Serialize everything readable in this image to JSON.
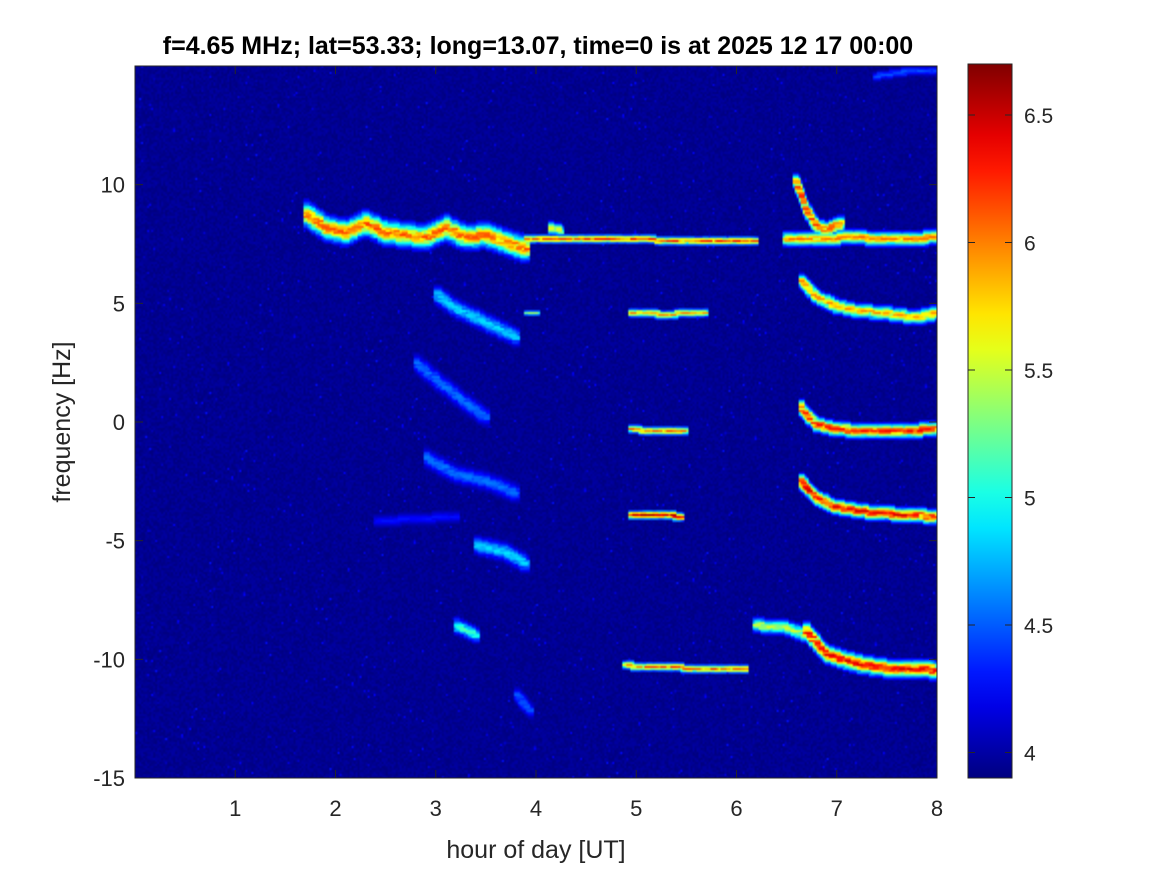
{
  "chart_data": {
    "type": "heatmap",
    "title": "f=4.65 MHz;  lat=53.33; long=13.07, time=0 is at 2025 12 17 00:00",
    "xlabel": "hour of day [UT]",
    "ylabel": "frequency [Hz]",
    "xlim": [
      0,
      8
    ],
    "ylim": [
      -15,
      15
    ],
    "x_ticks": [
      1,
      2,
      3,
      4,
      5,
      6,
      7,
      8
    ],
    "x_tick_labels": [
      "1",
      "2",
      "3",
      "4",
      "5",
      "6",
      "7",
      "8"
    ],
    "y_ticks": [
      -15,
      -10,
      -5,
      0,
      5,
      10
    ],
    "y_tick_labels": [
      "-15",
      "-10",
      "-5",
      "0",
      "5",
      "10"
    ],
    "colorbar": {
      "colormap": "jet",
      "clim": [
        3.9,
        6.7
      ],
      "ticks": [
        4,
        4.5,
        5,
        5.5,
        6,
        6.5
      ],
      "tick_labels": [
        "4",
        "4.5",
        "5",
        "5.5",
        "6",
        "6.5"
      ]
    },
    "background_level": 3.95,
    "features": [
      {
        "kind": "track",
        "points": [
          [
            1.7,
            8.8
          ],
          [
            1.9,
            8.2
          ],
          [
            2.1,
            8.0
          ],
          [
            2.3,
            8.4
          ],
          [
            2.5,
            8.0
          ],
          [
            2.7,
            7.9
          ],
          [
            2.9,
            7.8
          ],
          [
            3.1,
            8.2
          ],
          [
            3.3,
            7.8
          ],
          [
            3.5,
            7.9
          ],
          [
            3.7,
            7.6
          ],
          [
            3.9,
            7.3
          ]
        ],
        "level": 6.2,
        "width": 0.55
      },
      {
        "kind": "track",
        "points": [
          [
            3.9,
            7.7
          ],
          [
            5.0,
            7.7
          ],
          [
            6.0,
            7.65
          ],
          [
            6.2,
            7.65
          ]
        ],
        "level": 6.3,
        "width": 0.15
      },
      {
        "kind": "track",
        "points": [
          [
            6.5,
            7.7
          ],
          [
            7.2,
            7.8
          ],
          [
            7.6,
            7.7
          ],
          [
            8.0,
            7.8
          ]
        ],
        "level": 6.1,
        "width": 0.35
      },
      {
        "kind": "track",
        "points": [
          [
            6.6,
            10.2
          ],
          [
            6.7,
            9.0
          ],
          [
            6.8,
            8.3
          ],
          [
            6.9,
            8.1
          ],
          [
            7.05,
            8.4
          ]
        ],
        "level": 6.3,
        "width": 0.3
      },
      {
        "kind": "track",
        "points": [
          [
            4.15,
            8.2
          ],
          [
            4.25,
            8.1
          ]
        ],
        "level": 5.6,
        "width": 0.25
      },
      {
        "kind": "track",
        "points": [
          [
            3.0,
            5.4
          ],
          [
            3.2,
            4.8
          ],
          [
            3.4,
            4.4
          ],
          [
            3.6,
            4.0
          ],
          [
            3.8,
            3.6
          ]
        ],
        "level": 4.9,
        "width": 0.45
      },
      {
        "kind": "track",
        "points": [
          [
            4.95,
            4.6
          ],
          [
            5.3,
            4.55
          ],
          [
            5.7,
            4.6
          ]
        ],
        "level": 6.0,
        "width": 0.15
      },
      {
        "kind": "track",
        "points": [
          [
            3.9,
            4.6
          ],
          [
            4.0,
            4.6
          ]
        ],
        "level": 5.4,
        "width": 0.1
      },
      {
        "kind": "track",
        "points": [
          [
            6.65,
            6.0
          ],
          [
            6.8,
            5.3
          ],
          [
            7.0,
            4.9
          ],
          [
            7.2,
            4.7
          ],
          [
            7.5,
            4.6
          ],
          [
            7.8,
            4.4
          ],
          [
            8.0,
            4.6
          ]
        ],
        "level": 6.0,
        "width": 0.35
      },
      {
        "kind": "track",
        "points": [
          [
            2.8,
            2.5
          ],
          [
            3.0,
            1.8
          ],
          [
            3.3,
            0.8
          ],
          [
            3.5,
            0.2
          ]
        ],
        "level": 4.6,
        "width": 0.4
      },
      {
        "kind": "track",
        "points": [
          [
            4.95,
            -0.3
          ],
          [
            5.2,
            -0.4
          ],
          [
            5.5,
            -0.4
          ]
        ],
        "level": 6.2,
        "width": 0.15
      },
      {
        "kind": "track",
        "points": [
          [
            6.65,
            0.6
          ],
          [
            6.8,
            -0.1
          ],
          [
            7.0,
            -0.3
          ],
          [
            7.3,
            -0.4
          ],
          [
            7.6,
            -0.4
          ],
          [
            8.0,
            -0.3
          ]
        ],
        "level": 6.4,
        "width": 0.35
      },
      {
        "kind": "track",
        "points": [
          [
            2.9,
            -1.5
          ],
          [
            3.2,
            -2.2
          ],
          [
            3.5,
            -2.5
          ],
          [
            3.8,
            -3.0
          ]
        ],
        "level": 4.6,
        "width": 0.45
      },
      {
        "kind": "track",
        "points": [
          [
            4.95,
            -3.9
          ],
          [
            5.2,
            -3.9
          ],
          [
            5.45,
            -4.0
          ]
        ],
        "level": 6.6,
        "width": 0.15
      },
      {
        "kind": "track",
        "points": [
          [
            6.65,
            -2.5
          ],
          [
            6.8,
            -3.2
          ],
          [
            7.0,
            -3.6
          ],
          [
            7.3,
            -3.8
          ],
          [
            7.6,
            -3.9
          ],
          [
            8.0,
            -4.0
          ]
        ],
        "level": 6.5,
        "width": 0.35
      },
      {
        "kind": "track",
        "points": [
          [
            2.4,
            -4.2
          ],
          [
            2.8,
            -4.1
          ],
          [
            3.2,
            -4.0
          ]
        ],
        "level": 4.3,
        "width": 0.25
      },
      {
        "kind": "track",
        "points": [
          [
            3.4,
            -5.2
          ],
          [
            3.7,
            -5.5
          ],
          [
            3.9,
            -6.0
          ]
        ],
        "level": 4.9,
        "width": 0.4
      },
      {
        "kind": "track",
        "points": [
          [
            3.2,
            -8.6
          ],
          [
            3.4,
            -9.0
          ]
        ],
        "level": 5.2,
        "width": 0.35
      },
      {
        "kind": "track",
        "points": [
          [
            4.9,
            -10.3
          ],
          [
            5.5,
            -10.4
          ],
          [
            6.1,
            -10.4
          ]
        ],
        "level": 6.2,
        "width": 0.15
      },
      {
        "kind": "track",
        "points": [
          [
            6.2,
            -8.6
          ],
          [
            6.5,
            -8.7
          ],
          [
            6.7,
            -9.0
          ]
        ],
        "level": 5.6,
        "width": 0.3
      },
      {
        "kind": "track",
        "points": [
          [
            6.7,
            -8.8
          ],
          [
            6.9,
            -9.8
          ],
          [
            7.2,
            -10.2
          ],
          [
            7.5,
            -10.4
          ],
          [
            7.8,
            -10.4
          ],
          [
            8.0,
            -10.5
          ]
        ],
        "level": 6.5,
        "width": 0.45
      },
      {
        "kind": "track",
        "points": [
          [
            3.8,
            -11.5
          ],
          [
            3.95,
            -12.2
          ]
        ],
        "level": 4.5,
        "width": 0.3
      },
      {
        "kind": "track",
        "points": [
          [
            7.4,
            14.6
          ],
          [
            7.7,
            14.8
          ],
          [
            8.0,
            14.8
          ]
        ],
        "level": 4.5,
        "width": 0.2
      }
    ]
  }
}
